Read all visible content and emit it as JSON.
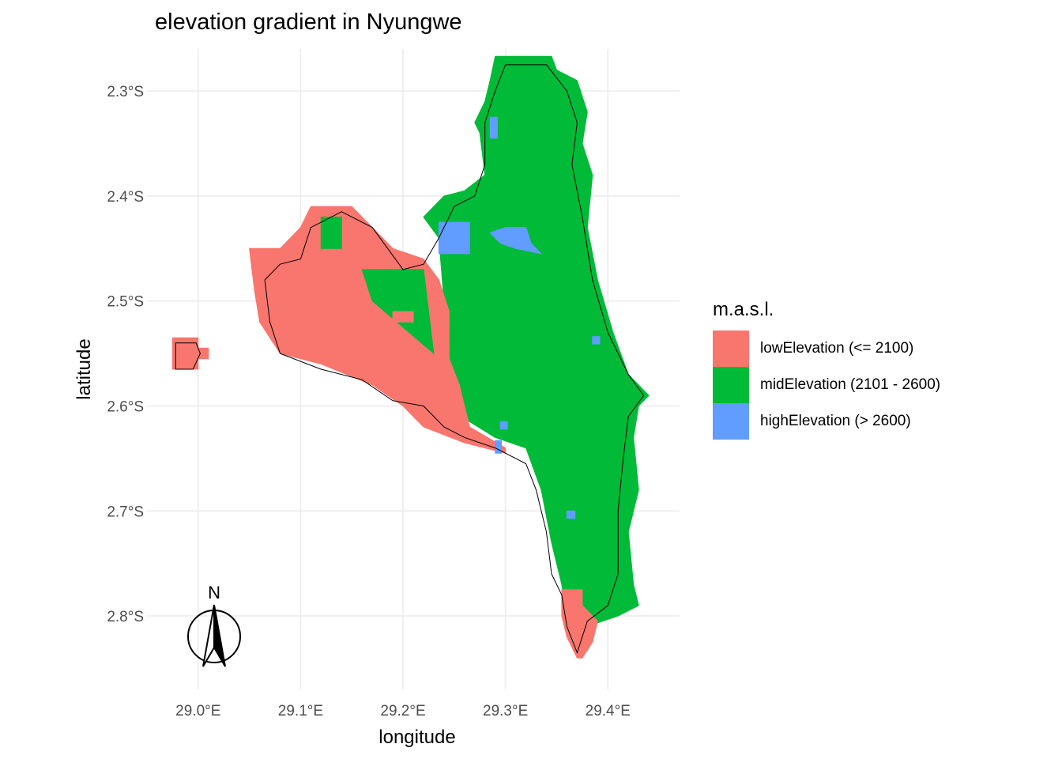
{
  "title": "elevation gradient in Nyungwe",
  "chart_data": {
    "type": "heatmap",
    "title": "elevation gradient in Nyungwe",
    "xlabel": "longitude",
    "ylabel": "latitude",
    "xlim": [
      28.95,
      29.47
    ],
    "ylim": [
      -2.87,
      -2.26
    ],
    "x_ticks": [
      {
        "value": 29.0,
        "label": "29.0°E"
      },
      {
        "value": 29.1,
        "label": "29.1°E"
      },
      {
        "value": 29.2,
        "label": "29.2°E"
      },
      {
        "value": 29.3,
        "label": "29.3°E"
      },
      {
        "value": 29.4,
        "label": "29.4°E"
      }
    ],
    "y_ticks": [
      {
        "value": -2.3,
        "label": "2.3°S"
      },
      {
        "value": -2.4,
        "label": "2.4°S"
      },
      {
        "value": -2.5,
        "label": "2.5°S"
      },
      {
        "value": -2.6,
        "label": "2.6°S"
      },
      {
        "value": -2.7,
        "label": "2.7°S"
      },
      {
        "value": -2.8,
        "label": "2.8°S"
      }
    ],
    "grid": true,
    "legend_position": "right",
    "legend": {
      "title": "m.a.s.l.",
      "entries": [
        {
          "key": "low",
          "label": "lowElevation (<= 2100)",
          "color": "#F8766D"
        },
        {
          "key": "mid",
          "label": "midElevation (2101 - 2600)",
          "color": "#00BA38"
        },
        {
          "key": "high",
          "label": "highElevation (> 2600)",
          "color": "#619CFF"
        }
      ]
    },
    "regions": [
      {
        "class": "mid",
        "name": "main-forest-block",
        "polygon": [
          [
            29.29,
            -2.267
          ],
          [
            29.345,
            -2.267
          ],
          [
            29.35,
            -2.28
          ],
          [
            29.37,
            -2.29
          ],
          [
            29.38,
            -2.32
          ],
          [
            29.375,
            -2.35
          ],
          [
            29.385,
            -2.38
          ],
          [
            29.38,
            -2.43
          ],
          [
            29.39,
            -2.48
          ],
          [
            29.405,
            -2.53
          ],
          [
            29.42,
            -2.57
          ],
          [
            29.44,
            -2.59
          ],
          [
            29.43,
            -2.6
          ],
          [
            29.425,
            -2.63
          ],
          [
            29.43,
            -2.68
          ],
          [
            29.42,
            -2.72
          ],
          [
            29.425,
            -2.77
          ],
          [
            29.43,
            -2.79
          ],
          [
            29.41,
            -2.8
          ],
          [
            29.38,
            -2.81
          ],
          [
            29.36,
            -2.8
          ],
          [
            29.355,
            -2.77
          ],
          [
            29.345,
            -2.73
          ],
          [
            29.335,
            -2.68
          ],
          [
            29.32,
            -2.64
          ],
          [
            29.29,
            -2.63
          ],
          [
            29.265,
            -2.615
          ],
          [
            29.24,
            -2.585
          ],
          [
            29.23,
            -2.56
          ],
          [
            29.24,
            -2.5
          ],
          [
            29.235,
            -2.44
          ],
          [
            29.22,
            -2.42
          ],
          [
            29.24,
            -2.4
          ],
          [
            29.26,
            -2.395
          ],
          [
            29.28,
            -2.38
          ],
          [
            29.275,
            -2.34
          ],
          [
            29.27,
            -2.33
          ],
          [
            29.28,
            -2.31
          ],
          [
            29.285,
            -2.29
          ]
        ]
      },
      {
        "class": "low",
        "name": "western-lowlands",
        "polygon": [
          [
            29.05,
            -2.45
          ],
          [
            29.08,
            -2.45
          ],
          [
            29.1,
            -2.43
          ],
          [
            29.11,
            -2.41
          ],
          [
            29.15,
            -2.41
          ],
          [
            29.17,
            -2.43
          ],
          [
            29.19,
            -2.45
          ],
          [
            29.22,
            -2.46
          ],
          [
            29.235,
            -2.48
          ],
          [
            29.245,
            -2.51
          ],
          [
            29.245,
            -2.555
          ],
          [
            29.255,
            -2.58
          ],
          [
            29.265,
            -2.62
          ],
          [
            29.3,
            -2.64
          ],
          [
            29.3,
            -2.645
          ],
          [
            29.26,
            -2.635
          ],
          [
            29.22,
            -2.62
          ],
          [
            29.2,
            -2.6
          ],
          [
            29.17,
            -2.58
          ],
          [
            29.12,
            -2.56
          ],
          [
            29.08,
            -2.55
          ],
          [
            29.06,
            -2.52
          ],
          [
            29.055,
            -2.49
          ]
        ]
      },
      {
        "class": "low",
        "name": "western-outlier",
        "polygon": [
          [
            28.975,
            -2.535
          ],
          [
            29.0,
            -2.535
          ],
          [
            29.0,
            -2.545
          ],
          [
            29.01,
            -2.545
          ],
          [
            29.01,
            -2.555
          ],
          [
            29.0,
            -2.555
          ],
          [
            29.0,
            -2.565
          ],
          [
            28.975,
            -2.565
          ]
        ]
      },
      {
        "class": "low",
        "name": "southern-tip",
        "polygon": [
          [
            29.355,
            -2.775
          ],
          [
            29.375,
            -2.775
          ],
          [
            29.375,
            -2.79
          ],
          [
            29.39,
            -2.805
          ],
          [
            29.385,
            -2.825
          ],
          [
            29.375,
            -2.84
          ],
          [
            29.37,
            -2.84
          ],
          [
            29.36,
            -2.82
          ],
          [
            29.355,
            -2.8
          ]
        ]
      },
      {
        "class": "mid",
        "name": "mid-patch-nw",
        "polygon": [
          [
            29.12,
            -2.42
          ],
          [
            29.14,
            -2.42
          ],
          [
            29.14,
            -2.45
          ],
          [
            29.12,
            -2.45
          ]
        ]
      },
      {
        "class": "mid",
        "name": "mid-patch-center",
        "polygon": [
          [
            29.16,
            -2.47
          ],
          [
            29.22,
            -2.47
          ],
          [
            29.23,
            -2.55
          ],
          [
            29.17,
            -2.5
          ]
        ]
      },
      {
        "class": "low",
        "name": "low-patch-inset",
        "polygon": [
          [
            29.19,
            -2.51
          ],
          [
            29.21,
            -2.51
          ],
          [
            29.21,
            -2.52
          ],
          [
            29.19,
            -2.52
          ]
        ]
      },
      {
        "class": "high",
        "name": "high-patch-west",
        "polygon": [
          [
            29.235,
            -2.425
          ],
          [
            29.265,
            -2.425
          ],
          [
            29.265,
            -2.455
          ],
          [
            29.235,
            -2.455
          ]
        ]
      },
      {
        "class": "high",
        "name": "high-patch-center",
        "polygon": [
          [
            29.285,
            -2.435
          ],
          [
            29.3,
            -2.43
          ],
          [
            29.32,
            -2.43
          ],
          [
            29.325,
            -2.445
          ],
          [
            29.335,
            -2.455
          ],
          [
            29.31,
            -2.45
          ],
          [
            29.295,
            -2.445
          ]
        ]
      },
      {
        "class": "high",
        "name": "high-patch-north",
        "polygon": [
          [
            29.285,
            -2.325
          ],
          [
            29.292,
            -2.325
          ],
          [
            29.292,
            -2.345
          ],
          [
            29.285,
            -2.345
          ]
        ]
      },
      {
        "class": "high",
        "name": "high-patch-east",
        "polygon": [
          [
            29.385,
            -2.534
          ],
          [
            29.392,
            -2.534
          ],
          [
            29.392,
            -2.541
          ],
          [
            29.385,
            -2.541
          ]
        ]
      },
      {
        "class": "high",
        "name": "high-patch-south-a",
        "polygon": [
          [
            29.295,
            -2.615
          ],
          [
            29.302,
            -2.615
          ],
          [
            29.302,
            -2.622
          ],
          [
            29.295,
            -2.622
          ]
        ]
      },
      {
        "class": "high",
        "name": "high-patch-south-b",
        "polygon": [
          [
            29.29,
            -2.633
          ],
          [
            29.296,
            -2.633
          ],
          [
            29.296,
            -2.645
          ],
          [
            29.29,
            -2.645
          ]
        ]
      },
      {
        "class": "high",
        "name": "high-patch-south-c",
        "polygon": [
          [
            29.36,
            -2.7
          ],
          [
            29.368,
            -2.7
          ],
          [
            29.368,
            -2.707
          ],
          [
            29.36,
            -2.707
          ]
        ]
      }
    ],
    "boundary": [
      [
        29.3,
        -2.275
      ],
      [
        29.34,
        -2.275
      ],
      [
        29.36,
        -2.3
      ],
      [
        29.37,
        -2.33
      ],
      [
        29.365,
        -2.37
      ],
      [
        29.375,
        -2.42
      ],
      [
        29.385,
        -2.48
      ],
      [
        29.4,
        -2.53
      ],
      [
        29.42,
        -2.57
      ],
      [
        29.435,
        -2.59
      ],
      [
        29.42,
        -2.61
      ],
      [
        29.415,
        -2.65
      ],
      [
        29.41,
        -2.7
      ],
      [
        29.41,
        -2.76
      ],
      [
        29.4,
        -2.79
      ],
      [
        29.38,
        -2.805
      ],
      [
        29.37,
        -2.835
      ],
      [
        29.36,
        -2.81
      ],
      [
        29.355,
        -2.78
      ],
      [
        29.345,
        -2.76
      ],
      [
        29.34,
        -2.72
      ],
      [
        29.33,
        -2.68
      ],
      [
        29.32,
        -2.655
      ],
      [
        29.29,
        -2.64
      ],
      [
        29.26,
        -2.63
      ],
      [
        29.24,
        -2.62
      ],
      [
        29.22,
        -2.6
      ],
      [
        29.19,
        -2.595
      ],
      [
        29.16,
        -2.575
      ],
      [
        29.12,
        -2.565
      ],
      [
        29.08,
        -2.55
      ],
      [
        29.07,
        -2.52
      ],
      [
        29.065,
        -2.48
      ],
      [
        29.08,
        -2.465
      ],
      [
        29.1,
        -2.46
      ],
      [
        29.11,
        -2.43
      ],
      [
        29.14,
        -2.415
      ],
      [
        29.17,
        -2.43
      ],
      [
        29.2,
        -2.47
      ],
      [
        29.22,
        -2.465
      ],
      [
        29.235,
        -2.44
      ],
      [
        29.25,
        -2.41
      ],
      [
        29.27,
        -2.4
      ],
      [
        29.28,
        -2.37
      ],
      [
        29.28,
        -2.33
      ],
      [
        29.29,
        -2.3
      ]
    ],
    "outlier_boundary": [
      [
        28.978,
        -2.54
      ],
      [
        28.998,
        -2.54
      ],
      [
        29.002,
        -2.55
      ],
      [
        28.995,
        -2.565
      ],
      [
        28.978,
        -2.565
      ]
    ],
    "north_arrow": {
      "label": "N"
    }
  }
}
